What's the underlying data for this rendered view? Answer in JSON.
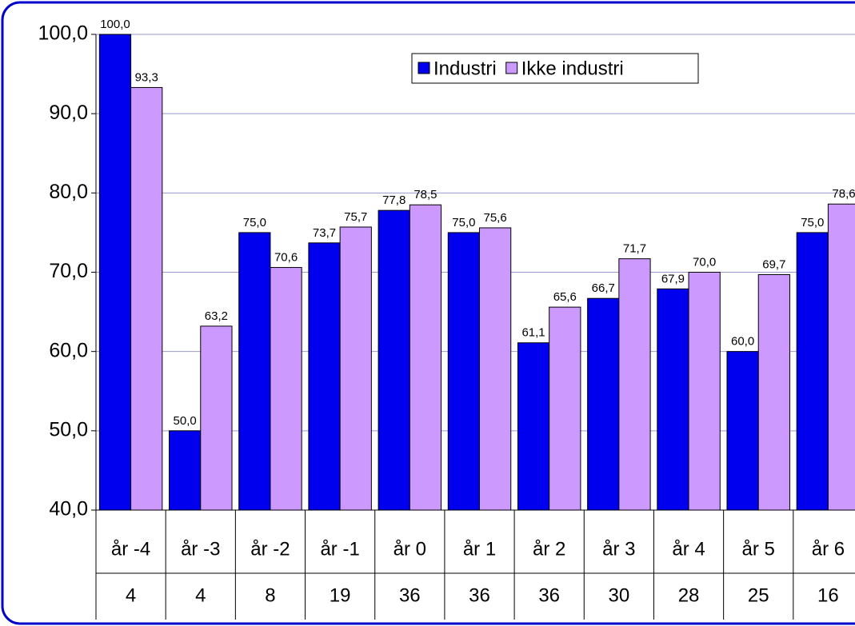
{
  "chart_data": {
    "type": "bar",
    "categories": [
      "år -4",
      "år -3",
      "år -2",
      "år -1",
      "år 0",
      "år 1",
      "år 2",
      "år 3",
      "år 4",
      "år 5",
      "år 6"
    ],
    "category_counts": [
      4,
      4,
      8,
      19,
      36,
      36,
      36,
      30,
      28,
      25,
      16
    ],
    "series": [
      {
        "name": "Industri",
        "color": "#0000ee",
        "values": [
          100.0,
          50.0,
          75.0,
          73.7,
          77.8,
          75.0,
          61.1,
          66.7,
          67.9,
          60.0,
          75.0
        ],
        "value_labels": [
          "100,0",
          "50,0",
          "75,0",
          "73,7",
          "77,8",
          "75,0",
          "61,1",
          "66,7",
          "67,9",
          "60,0",
          "75,0"
        ]
      },
      {
        "name": "Ikke industri",
        "color": "#cc99ff",
        "values": [
          93.3,
          63.2,
          70.6,
          75.7,
          78.5,
          75.6,
          65.6,
          71.7,
          70.0,
          69.7,
          78.6
        ],
        "value_labels": [
          "93,3",
          "63,2",
          "70,6",
          "75,7",
          "78,5",
          "75,6",
          "65,6",
          "71,7",
          "70,0",
          "69,7",
          "78,6"
        ]
      }
    ],
    "ylim": [
      40,
      100
    ],
    "yticks": [
      {
        "value": 40,
        "label": "40,0"
      },
      {
        "value": 50,
        "label": "50,0"
      },
      {
        "value": 60,
        "label": "60,0"
      },
      {
        "value": 70,
        "label": "70,0"
      },
      {
        "value": 80,
        "label": "80,0"
      },
      {
        "value": 90,
        "label": "90,0"
      },
      {
        "value": 100,
        "label": "100,0"
      }
    ],
    "grid": true
  }
}
